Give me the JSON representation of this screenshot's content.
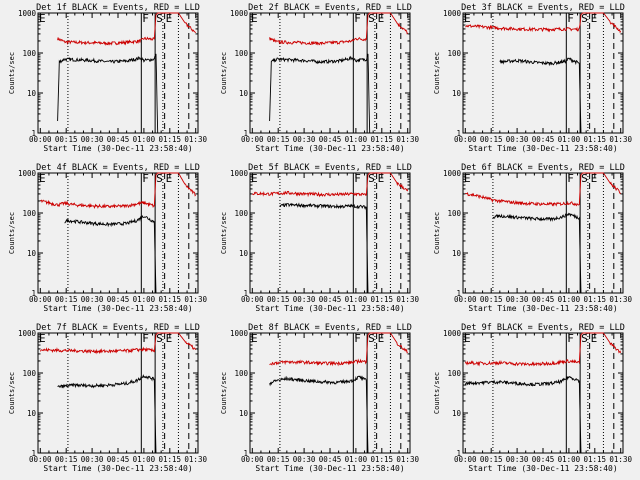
{
  "figure": {
    "xlabel": "Start Time (30-Dec-11 23:58:40)",
    "ylabel": "Counts/sec"
  },
  "chart_data": [
    {
      "type": "line",
      "panel": 1,
      "title": "Det 1f BLACK = Events, RED = LLD",
      "x_tick_labels": [
        "00:00",
        "00:15",
        "00:30",
        "00:45",
        "01:00",
        "01:15",
        "01:30"
      ],
      "y_tick_labels": [
        "1",
        "10",
        "100",
        "1000"
      ],
      "yscale": "log",
      "ylim": [
        1,
        1000
      ],
      "x_unit": "minutes",
      "xlim": [
        -1.33,
        91.33
      ],
      "markers": [
        {
          "label": "E",
          "x": -1.33,
          "style": "solid"
        },
        {
          "label": "F",
          "x": 58.5,
          "style": "solid"
        },
        {
          "label": "S",
          "x": 66.5,
          "style": "solid"
        },
        {
          "label": "E",
          "x": 72,
          "style": "dashed"
        }
      ],
      "dotted_lines": [
        16,
        71,
        80
      ],
      "dashed_lines": [
        86
      ],
      "series": [
        {
          "color": "#cc0000",
          "x": [
            10,
            12,
            14,
            20,
            30,
            40,
            50,
            58,
            60,
            66,
            67,
            68,
            70,
            71,
            76,
            80,
            84,
            87,
            90
          ],
          "values": [
            230,
            210,
            190,
            185,
            180,
            175,
            185,
            200,
            230,
            220,
            900,
            1000,
            1000,
            1000,
            1000,
            1000,
            550,
            420,
            320
          ]
        },
        {
          "color": "#000000",
          "x": [
            10,
            10.5,
            11,
            14,
            20,
            30,
            40,
            50,
            58,
            60,
            66,
            67,
            68
          ],
          "values": [
            2,
            10,
            60,
            70,
            68,
            65,
            60,
            63,
            75,
            65,
            70,
            95,
            1
          ]
        }
      ]
    },
    {
      "type": "line",
      "panel": 2,
      "title": "Det 2f BLACK = Events, RED = LLD",
      "x_tick_labels": [
        "00:00",
        "00:15",
        "00:30",
        "00:45",
        "01:00",
        "01:15",
        "01:30"
      ],
      "y_tick_labels": [
        "1",
        "10",
        "100",
        "1000"
      ],
      "yscale": "log",
      "ylim": [
        1,
        1000
      ],
      "x_unit": "minutes",
      "xlim": [
        -1.33,
        91.33
      ],
      "markers": [
        {
          "label": "E",
          "x": -1.33,
          "style": "solid"
        },
        {
          "label": "F",
          "x": 58.5,
          "style": "solid"
        },
        {
          "label": "S",
          "x": 66.5,
          "style": "solid"
        },
        {
          "label": "E",
          "x": 72,
          "style": "dashed"
        }
      ],
      "dotted_lines": [
        16,
        71,
        80
      ],
      "dashed_lines": [
        86
      ],
      "series": [
        {
          "color": "#cc0000",
          "x": [
            10,
            12,
            14,
            20,
            30,
            40,
            50,
            58,
            60,
            66,
            67,
            68,
            70,
            71,
            76,
            80,
            84,
            87,
            90
          ],
          "values": [
            230,
            210,
            190,
            185,
            180,
            175,
            185,
            200,
            230,
            220,
            900,
            1000,
            1000,
            1000,
            1000,
            1000,
            550,
            420,
            320
          ]
        },
        {
          "color": "#000000",
          "x": [
            10,
            10.5,
            11,
            14,
            20,
            30,
            40,
            50,
            58,
            60,
            66,
            67,
            68
          ],
          "values": [
            2,
            10,
            60,
            70,
            68,
            65,
            60,
            63,
            75,
            65,
            70,
            95,
            1
          ]
        }
      ]
    },
    {
      "type": "line",
      "panel": 3,
      "title": "Det 3f BLACK = Events, RED = LLD",
      "x_tick_labels": [
        "00:00",
        "00:15",
        "00:30",
        "00:45",
        "01:00",
        "01:15",
        "01:30"
      ],
      "y_tick_labels": [
        "1",
        "10",
        "100",
        "1000"
      ],
      "yscale": "log",
      "ylim": [
        1,
        1000
      ],
      "x_unit": "minutes",
      "xlim": [
        -1.33,
        91.33
      ],
      "markers": [
        {
          "label": "E",
          "x": -1.33,
          "style": "solid"
        },
        {
          "label": "F",
          "x": 58.5,
          "style": "solid"
        },
        {
          "label": "S",
          "x": 66.5,
          "style": "solid"
        },
        {
          "label": "E",
          "x": 72,
          "style": "dashed"
        }
      ],
      "dotted_lines": [
        16,
        71,
        80
      ],
      "dashed_lines": [
        86
      ],
      "series": [
        {
          "color": "#cc0000",
          "x": [
            0,
            10,
            20,
            30,
            40,
            50,
            58,
            62,
            66,
            67,
            68,
            70,
            71,
            76,
            80,
            84,
            87,
            90
          ],
          "values": [
            480,
            450,
            420,
            400,
            390,
            390,
            400,
            395,
            390,
            900,
            1000,
            1000,
            1000,
            1000,
            1000,
            600,
            450,
            350
          ]
        },
        {
          "color": "#000000",
          "x": [
            20,
            30,
            40,
            50,
            58,
            60,
            66,
            67
          ],
          "values": [
            60,
            65,
            58,
            55,
            62,
            72,
            55,
            1
          ]
        }
      ]
    },
    {
      "type": "line",
      "panel": 4,
      "title": "Det 4f BLACK = Events, RED = LLD",
      "x_tick_labels": [
        "00:00",
        "00:15",
        "00:30",
        "00:45",
        "01:00",
        "01:15",
        "01:30"
      ],
      "y_tick_labels": [
        "1",
        "10",
        "100",
        "1000"
      ],
      "yscale": "log",
      "ylim": [
        1,
        1000
      ],
      "x_unit": "minutes",
      "xlim": [
        -1.33,
        91.33
      ],
      "markers": [
        {
          "label": "E",
          "x": -1.33,
          "style": "solid"
        },
        {
          "label": "F",
          "x": 58.5,
          "style": "solid"
        },
        {
          "label": "S",
          "x": 66.5,
          "style": "solid"
        },
        {
          "label": "E",
          "x": 72,
          "style": "dashed"
        }
      ],
      "dotted_lines": [
        16,
        71,
        80
      ],
      "dashed_lines": [
        86
      ],
      "series": [
        {
          "color": "#cc0000",
          "x": [
            0,
            5,
            10,
            14,
            20,
            30,
            40,
            50,
            56,
            60,
            66,
            67,
            68,
            70,
            71,
            76,
            80,
            84,
            87,
            90
          ],
          "values": [
            200,
            180,
            160,
            175,
            160,
            150,
            145,
            150,
            170,
            180,
            150,
            900,
            1000,
            1000,
            1000,
            1000,
            1000,
            500,
            380,
            280
          ]
        },
        {
          "color": "#000000",
          "x": [
            14,
            16,
            20,
            30,
            40,
            50,
            56,
            60,
            66,
            67
          ],
          "values": [
            60,
            65,
            62,
            55,
            52,
            55,
            65,
            85,
            60,
            1
          ]
        }
      ]
    },
    {
      "type": "line",
      "panel": 5,
      "title": "Det 5f BLACK = Events, RED = LLD",
      "x_tick_labels": [
        "00:00",
        "00:15",
        "00:30",
        "00:45",
        "01:00",
        "01:15",
        "01:30"
      ],
      "y_tick_labels": [
        "1",
        "10",
        "100",
        "1000"
      ],
      "yscale": "log",
      "ylim": [
        1,
        1000
      ],
      "x_unit": "minutes",
      "xlim": [
        -1.33,
        91.33
      ],
      "markers": [
        {
          "label": "E",
          "x": -1.33,
          "style": "solid"
        },
        {
          "label": "F",
          "x": 58.5,
          "style": "solid"
        },
        {
          "label": "S",
          "x": 66.5,
          "style": "solid"
        },
        {
          "label": "E",
          "x": 72,
          "style": "dashed"
        }
      ],
      "dotted_lines": [
        16,
        71,
        80
      ],
      "dashed_lines": [
        86
      ],
      "series": [
        {
          "color": "#cc0000",
          "x": [
            0,
            10,
            20,
            30,
            40,
            50,
            58,
            62,
            66,
            67,
            68,
            70,
            71,
            76,
            80,
            84,
            87,
            90
          ],
          "values": [
            310,
            300,
            320,
            300,
            290,
            290,
            300,
            295,
            280,
            900,
            1000,
            1000,
            1000,
            1000,
            1000,
            550,
            450,
            350
          ]
        },
        {
          "color": "#000000",
          "x": [
            16,
            20,
            30,
            40,
            50,
            58,
            62,
            66,
            67
          ],
          "values": [
            150,
            160,
            155,
            150,
            145,
            150,
            145,
            140,
            1
          ]
        }
      ]
    },
    {
      "type": "line",
      "panel": 6,
      "title": "Det 6f BLACK = Events, RED = LLD",
      "x_tick_labels": [
        "00:00",
        "00:15",
        "00:30",
        "00:45",
        "01:00",
        "01:15",
        "01:30"
      ],
      "y_tick_labels": [
        "1",
        "10",
        "100",
        "1000"
      ],
      "yscale": "log",
      "ylim": [
        1,
        1000
      ],
      "x_unit": "minutes",
      "xlim": [
        -1.33,
        91.33
      ],
      "markers": [
        {
          "label": "E",
          "x": -1.33,
          "style": "solid"
        },
        {
          "label": "F",
          "x": 58.5,
          "style": "solid"
        },
        {
          "label": "S",
          "x": 66.5,
          "style": "solid"
        },
        {
          "label": "E",
          "x": 72,
          "style": "dashed"
        }
      ],
      "dotted_lines": [
        16,
        71,
        80
      ],
      "dashed_lines": [
        86
      ],
      "series": [
        {
          "color": "#cc0000",
          "x": [
            0,
            5,
            10,
            16,
            20,
            30,
            40,
            50,
            56,
            60,
            66,
            67,
            68,
            70,
            71,
            76,
            80,
            84,
            87,
            90
          ],
          "values": [
            310,
            280,
            250,
            210,
            200,
            180,
            170,
            165,
            170,
            180,
            165,
            900,
            1000,
            1000,
            1000,
            1000,
            1000,
            550,
            420,
            320
          ]
        },
        {
          "color": "#000000",
          "x": [
            16,
            20,
            30,
            40,
            50,
            56,
            60,
            66,
            67
          ],
          "values": [
            80,
            85,
            78,
            72,
            70,
            80,
            95,
            75,
            1
          ]
        }
      ]
    },
    {
      "type": "line",
      "panel": 7,
      "title": "Det 7f BLACK = Events, RED = LLD",
      "x_tick_labels": [
        "00:00",
        "00:15",
        "00:30",
        "00:45",
        "01:00",
        "01:15",
        "01:30"
      ],
      "y_tick_labels": [
        "1",
        "10",
        "100",
        "1000"
      ],
      "yscale": "log",
      "ylim": [
        1,
        1000
      ],
      "x_unit": "minutes",
      "xlim": [
        -1.33,
        91.33
      ],
      "markers": [
        {
          "label": "E",
          "x": -1.33,
          "style": "solid"
        },
        {
          "label": "F",
          "x": 58.5,
          "style": "solid"
        },
        {
          "label": "S",
          "x": 66.5,
          "style": "solid"
        },
        {
          "label": "E",
          "x": 72,
          "style": "dashed"
        }
      ],
      "dotted_lines": [
        16,
        71,
        80
      ],
      "dashed_lines": [
        86
      ],
      "series": [
        {
          "color": "#cc0000",
          "x": [
            0,
            10,
            20,
            30,
            40,
            50,
            56,
            60,
            66,
            67,
            68,
            70,
            71,
            76,
            80,
            84,
            87,
            90
          ],
          "values": [
            380,
            370,
            360,
            350,
            350,
            360,
            380,
            390,
            360,
            900,
            1000,
            1000,
            1000,
            1000,
            1000,
            600,
            480,
            380
          ]
        },
        {
          "color": "#000000",
          "x": [
            10,
            20,
            30,
            40,
            50,
            56,
            60,
            66,
            67
          ],
          "values": [
            45,
            50,
            48,
            50,
            55,
            65,
            85,
            70,
            1
          ]
        }
      ]
    },
    {
      "type": "line",
      "panel": 8,
      "title": "Det 8f BLACK = Events, RED = LLD",
      "x_tick_labels": [
        "00:00",
        "00:15",
        "00:30",
        "00:45",
        "01:00",
        "01:15",
        "01:30"
      ],
      "y_tick_labels": [
        "1",
        "10",
        "100",
        "1000"
      ],
      "yscale": "log",
      "ylim": [
        1,
        1000
      ],
      "x_unit": "minutes",
      "xlim": [
        -1.33,
        91.33
      ],
      "markers": [
        {
          "label": "E",
          "x": -1.33,
          "style": "solid"
        },
        {
          "label": "F",
          "x": 58.5,
          "style": "solid"
        },
        {
          "label": "S",
          "x": 66.5,
          "style": "solid"
        },
        {
          "label": "E",
          "x": 72,
          "style": "dashed"
        }
      ],
      "dotted_lines": [
        16,
        71,
        80
      ],
      "dashed_lines": [
        86
      ],
      "series": [
        {
          "color": "#cc0000",
          "x": [
            10,
            14,
            20,
            30,
            40,
            50,
            58,
            62,
            66,
            67,
            68,
            70,
            71,
            76,
            80,
            84,
            87,
            90
          ],
          "values": [
            170,
            180,
            190,
            185,
            175,
            175,
            185,
            200,
            190,
            900,
            1000,
            1000,
            1000,
            1000,
            1000,
            550,
            420,
            330
          ]
        },
        {
          "color": "#000000",
          "x": [
            10,
            14,
            20,
            30,
            40,
            50,
            58,
            62,
            66,
            67
          ],
          "values": [
            55,
            65,
            72,
            65,
            60,
            58,
            65,
            80,
            65,
            1
          ]
        }
      ]
    },
    {
      "type": "line",
      "panel": 9,
      "title": "Det 9f BLACK = Events, RED = LLD",
      "x_tick_labels": [
        "00:00",
        "00:15",
        "00:30",
        "00:45",
        "01:00",
        "01:15",
        "01:30"
      ],
      "y_tick_labels": [
        "1",
        "10",
        "100",
        "1000"
      ],
      "yscale": "log",
      "ylim": [
        1,
        1000
      ],
      "x_unit": "minutes",
      "xlim": [
        -1.33,
        91.33
      ],
      "markers": [
        {
          "label": "E",
          "x": -1.33,
          "style": "solid"
        },
        {
          "label": "F",
          "x": 58.5,
          "style": "solid"
        },
        {
          "label": "S",
          "x": 66.5,
          "style": "solid"
        },
        {
          "label": "E",
          "x": 72,
          "style": "dashed"
        }
      ],
      "dotted_lines": [
        16,
        71,
        80
      ],
      "dashed_lines": [
        86
      ],
      "series": [
        {
          "color": "#cc0000",
          "x": [
            0,
            10,
            20,
            30,
            40,
            50,
            56,
            60,
            66,
            67,
            68,
            70,
            71,
            76,
            80,
            84,
            87,
            90
          ],
          "values": [
            180,
            175,
            180,
            170,
            165,
            175,
            190,
            200,
            180,
            900,
            1000,
            1000,
            1000,
            1000,
            1000,
            550,
            420,
            320
          ]
        },
        {
          "color": "#000000",
          "x": [
            0,
            10,
            20,
            30,
            40,
            50,
            56,
            60,
            66,
            67
          ],
          "values": [
            55,
            58,
            60,
            55,
            52,
            55,
            62,
            80,
            65,
            1
          ]
        }
      ]
    }
  ]
}
